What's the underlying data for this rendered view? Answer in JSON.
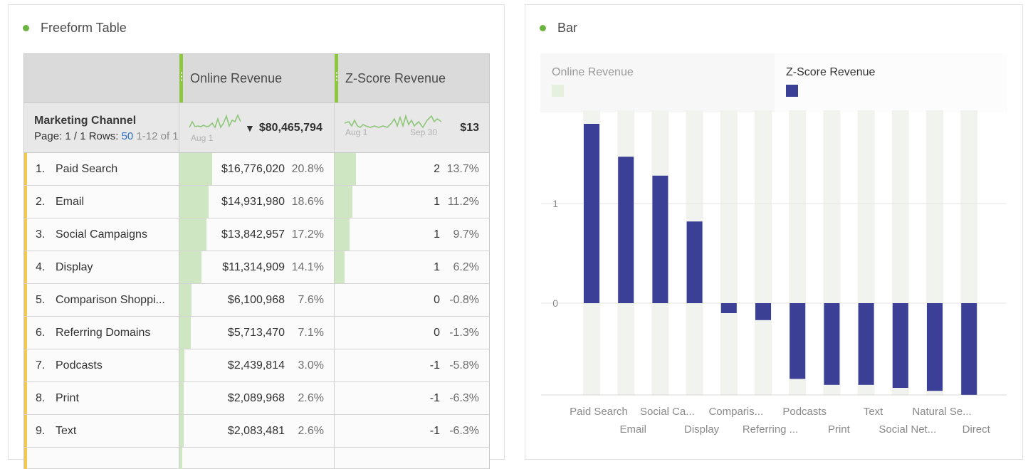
{
  "colors": {
    "accent": "#6db33f",
    "bar": "#3c3f96",
    "fill": "#cfe6c2",
    "row_accent": "#f5c74d"
  },
  "table_panel": {
    "title": "Freeform Table",
    "columns": [
      "Online Revenue",
      "Z-Score Revenue"
    ],
    "dimension": "Marketing Channel",
    "page_label": "Page: 1 / 1 Rows:",
    "rows_count": "50",
    "range": "1-12 of 1",
    "sparkline1": {
      "start_label": "Aug 1"
    },
    "sparkline2": {
      "start_label": "Aug 1",
      "end_label": "Sep 30"
    },
    "total_revenue": "$80,465,794",
    "total_zscore": "$13",
    "rows": [
      {
        "n": "1.",
        "name": "Paid Search",
        "rev": "$16,776,020",
        "pct": "20.8%",
        "z": "2",
        "zpct": "13.7%"
      },
      {
        "n": "2.",
        "name": "Email",
        "rev": "$14,931,980",
        "pct": "18.6%",
        "z": "1",
        "zpct": "11.2%"
      },
      {
        "n": "3.",
        "name": "Social Campaigns",
        "rev": "$13,842,957",
        "pct": "17.2%",
        "z": "1",
        "zpct": "9.7%"
      },
      {
        "n": "4.",
        "name": "Display",
        "rev": "$11,314,909",
        "pct": "14.1%",
        "z": "1",
        "zpct": "6.2%"
      },
      {
        "n": "5.",
        "name": "Comparison Shoppi...",
        "rev": "$6,100,968",
        "pct": "7.6%",
        "z": "0",
        "zpct": "-0.8%"
      },
      {
        "n": "6.",
        "name": "Referring Domains",
        "rev": "$5,713,470",
        "pct": "7.1%",
        "z": "0",
        "zpct": "-1.3%"
      },
      {
        "n": "7.",
        "name": "Podcasts",
        "rev": "$2,439,814",
        "pct": "3.0%",
        "z": "-1",
        "zpct": "-5.8%"
      },
      {
        "n": "8.",
        "name": "Print",
        "rev": "$2,089,968",
        "pct": "2.6%",
        "z": "-1",
        "zpct": "-6.3%"
      },
      {
        "n": "9.",
        "name": "Text",
        "rev": "$2,083,481",
        "pct": "2.6%",
        "z": "-1",
        "zpct": "-6.3%"
      }
    ]
  },
  "bar_panel": {
    "title": "Bar",
    "legend": [
      {
        "name": "Online Revenue",
        "color": "#e6f0de"
      },
      {
        "name": "Z-Score Revenue",
        "color": "#3c3f96"
      }
    ]
  },
  "chart_data": {
    "type": "bar",
    "categories": [
      "Paid Search",
      "Email",
      "Social Ca...",
      "Display",
      "Comparis...",
      "Referring ...",
      "Podcasts",
      "Print",
      "Text",
      "Social Net...",
      "Natural Se...",
      "Direct"
    ],
    "series": [
      {
        "name": "Z-Score Revenue",
        "values": [
          1.8,
          1.47,
          1.28,
          0.82,
          -0.1,
          -0.17,
          -0.76,
          -0.82,
          -0.82,
          -0.85,
          -0.88,
          -0.92
        ]
      }
    ],
    "y_ticks": [
      "1",
      "0"
    ],
    "ylim": [
      -0.95,
      2.0
    ],
    "grid": true,
    "legend_position": "top"
  }
}
